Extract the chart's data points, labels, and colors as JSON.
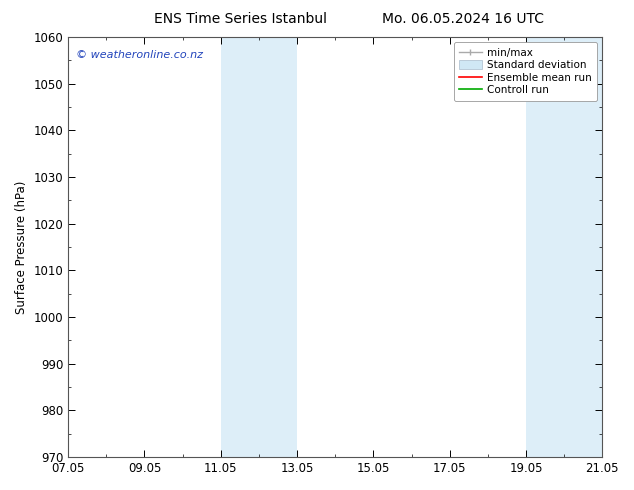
{
  "title_left": "ENS Time Series Istanbul",
  "title_right": "Mo. 06.05.2024 16 UTC",
  "ylabel": "Surface Pressure (hPa)",
  "ylim": [
    970,
    1060
  ],
  "yticks": [
    970,
    980,
    990,
    1000,
    1010,
    1020,
    1030,
    1040,
    1050,
    1060
  ],
  "xtick_labels": [
    "07.05",
    "09.05",
    "11.05",
    "13.05",
    "15.05",
    "17.05",
    "19.05",
    "21.05"
  ],
  "xtick_positions": [
    0,
    2,
    4,
    6,
    8,
    10,
    12,
    14
  ],
  "xlim": [
    0,
    14
  ],
  "shaded_regions": [
    {
      "xstart": 4.0,
      "xend": 6.0
    },
    {
      "xstart": 12.0,
      "xend": 14.0
    }
  ],
  "shaded_color": "#ddeef8",
  "background_color": "#ffffff",
  "watermark_text": "© weatheronline.co.nz",
  "watermark_color": "#2244bb",
  "grid_color": "#cccccc",
  "tick_color": "#000000",
  "label_fontsize": 8.5,
  "title_fontsize": 10,
  "ylabel_fontsize": 8.5,
  "legend_fontsize": 7.5,
  "watermark_fontsize": 8,
  "minmax_color": "#aaaaaa",
  "std_color": "#d0e8f5",
  "ensemble_color": "#ff0000",
  "control_color": "#00aa00"
}
